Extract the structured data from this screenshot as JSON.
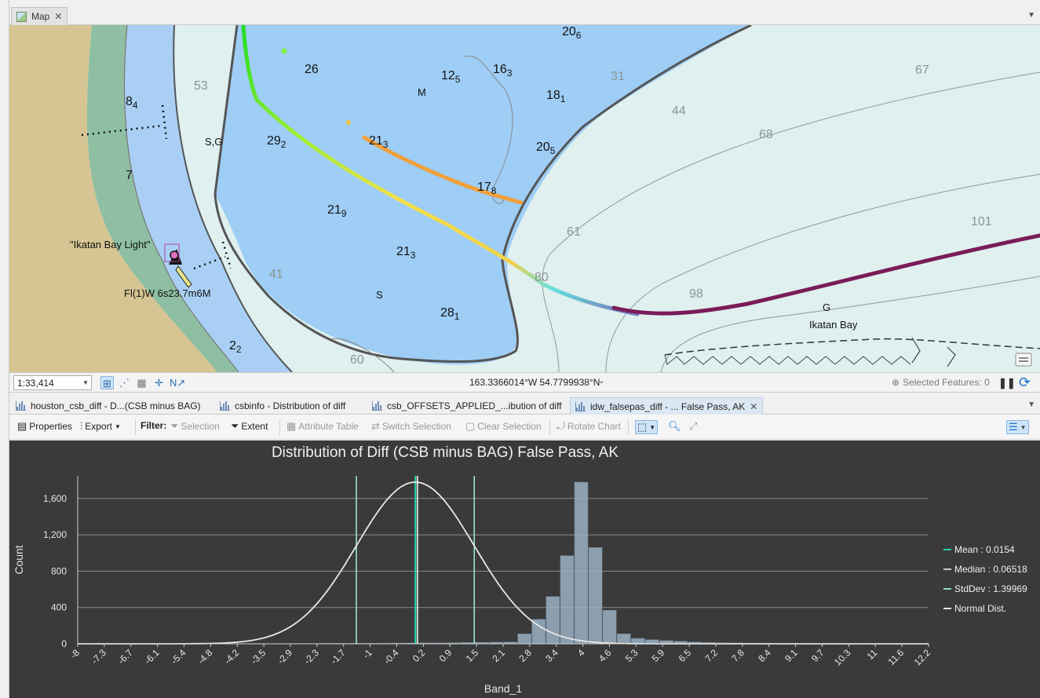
{
  "map_tab": {
    "title": "Map",
    "icon": "map-icon"
  },
  "map": {
    "depth_soundings": [
      {
        "main": "20",
        "sub": "6"
      },
      {
        "main": "26",
        "sub": ""
      },
      {
        "main": "12",
        "sub": "5"
      },
      {
        "main": "16",
        "sub": "3"
      },
      {
        "main": "18",
        "sub": "1"
      },
      {
        "main": "8",
        "sub": "4"
      },
      {
        "main": "29",
        "sub": "2"
      },
      {
        "main": "21",
        "sub": "3"
      },
      {
        "main": "20",
        "sub": "5"
      },
      {
        "main": "7",
        "sub": ""
      },
      {
        "main": "17",
        "sub": "8"
      },
      {
        "main": "21",
        "sub": "9"
      },
      {
        "main": "21",
        "sub": "3"
      },
      {
        "main": "28",
        "sub": "1"
      },
      {
        "main": "2",
        "sub": "2"
      }
    ],
    "contour_labels": [
      "53",
      "31",
      "67",
      "44",
      "68",
      "101",
      "61",
      "41",
      "80",
      "98",
      "60"
    ],
    "text_labels": {
      "m": "M",
      "sg": "S,G",
      "s": "S",
      "g": "G",
      "bay": "Ikatan Bay",
      "light": "\"Ikatan Bay Light\"",
      "light_char": "Fl(1)W 6s23.7m6M"
    }
  },
  "map_status": {
    "scale": "1:33,414",
    "coordinates": "163.3366014°W 54.7799938°N",
    "selected_features": "Selected Features: 0"
  },
  "chart_tabs": [
    {
      "label": "houston_csb_diff - D...(CSB minus BAG)",
      "active": false
    },
    {
      "label": "csbinfo - Distribution of diff",
      "active": false
    },
    {
      "label": "csb_OFFSETS_APPLIED_...ibution of diff",
      "active": false
    },
    {
      "label": "idw_falsepas_diff - ... False Pass, AK",
      "active": true
    }
  ],
  "toolbar": {
    "properties": "Properties",
    "export": "Export",
    "filter": "Filter:",
    "selection": "Selection",
    "extent": "Extent",
    "attribute_table": "Attribute Table",
    "switch_selection": "Switch Selection",
    "clear_selection": "Clear Selection",
    "rotate_chart": "Rotate Chart"
  },
  "chart_data": {
    "type": "bar",
    "title": "Distribution of Diff (CSB minus BAG) False Pass, AK",
    "xlabel": "Band_1",
    "ylabel": "Count",
    "xlim": [
      -8,
      12.2
    ],
    "ylim": [
      0,
      1850
    ],
    "yticks": [
      0,
      400,
      800,
      1200,
      1600
    ],
    "ytick_labels": [
      "0",
      "400",
      "800",
      "1,200",
      "1,600"
    ],
    "xtick_labels": [
      "-8",
      "-7.3",
      "-6.7",
      "-6.1",
      "-5.4",
      "-4.8",
      "-4.2",
      "-3.5",
      "-2.9",
      "-2.3",
      "-1.7",
      "-1",
      "-0.4",
      "0.2",
      "0.9",
      "1.5",
      "2.1",
      "2.8",
      "3.4",
      "4",
      "4.6",
      "5.3",
      "5.9",
      "6.5",
      "7.2",
      "7.8",
      "8.4",
      "9.1",
      "9.7",
      "10.3",
      "11",
      "11.6",
      "12.2"
    ],
    "bin_width": 0.337,
    "bin_start": -8,
    "counts": [
      3,
      3,
      3,
      2,
      2,
      2,
      2,
      2,
      2,
      2,
      2,
      2,
      3,
      3,
      3,
      4,
      4,
      5,
      5,
      6,
      6,
      7,
      8,
      9,
      10,
      11,
      12,
      14,
      16,
      18,
      20,
      110,
      270,
      520,
      970,
      1780,
      1060,
      370,
      110,
      60,
      45,
      35,
      28,
      20,
      15,
      12,
      10,
      8,
      7,
      6,
      5,
      5,
      4,
      4,
      3,
      3,
      3,
      2,
      2,
      2
    ],
    "stats": {
      "mean": 0.0154,
      "median": 0.06518,
      "stddev": 1.39969
    },
    "legend": [
      {
        "label": "Mean : 0.0154",
        "color": "#1fd3a6"
      },
      {
        "label": "Median : 0.06518",
        "color": "#c8c8c8"
      },
      {
        "label": "StdDev : 1.39969",
        "color": "#7ee0c8"
      },
      {
        "label": "Normal Dist.",
        "color": "#e6e6e6"
      }
    ],
    "legend_position": "right",
    "grid": true,
    "colors": {
      "bars": "#9ab2c4",
      "background": "#3a3a3a",
      "curve": "#e8e8e8",
      "mean": "#1fd3a6",
      "stddev": "#9ef0dc"
    }
  }
}
